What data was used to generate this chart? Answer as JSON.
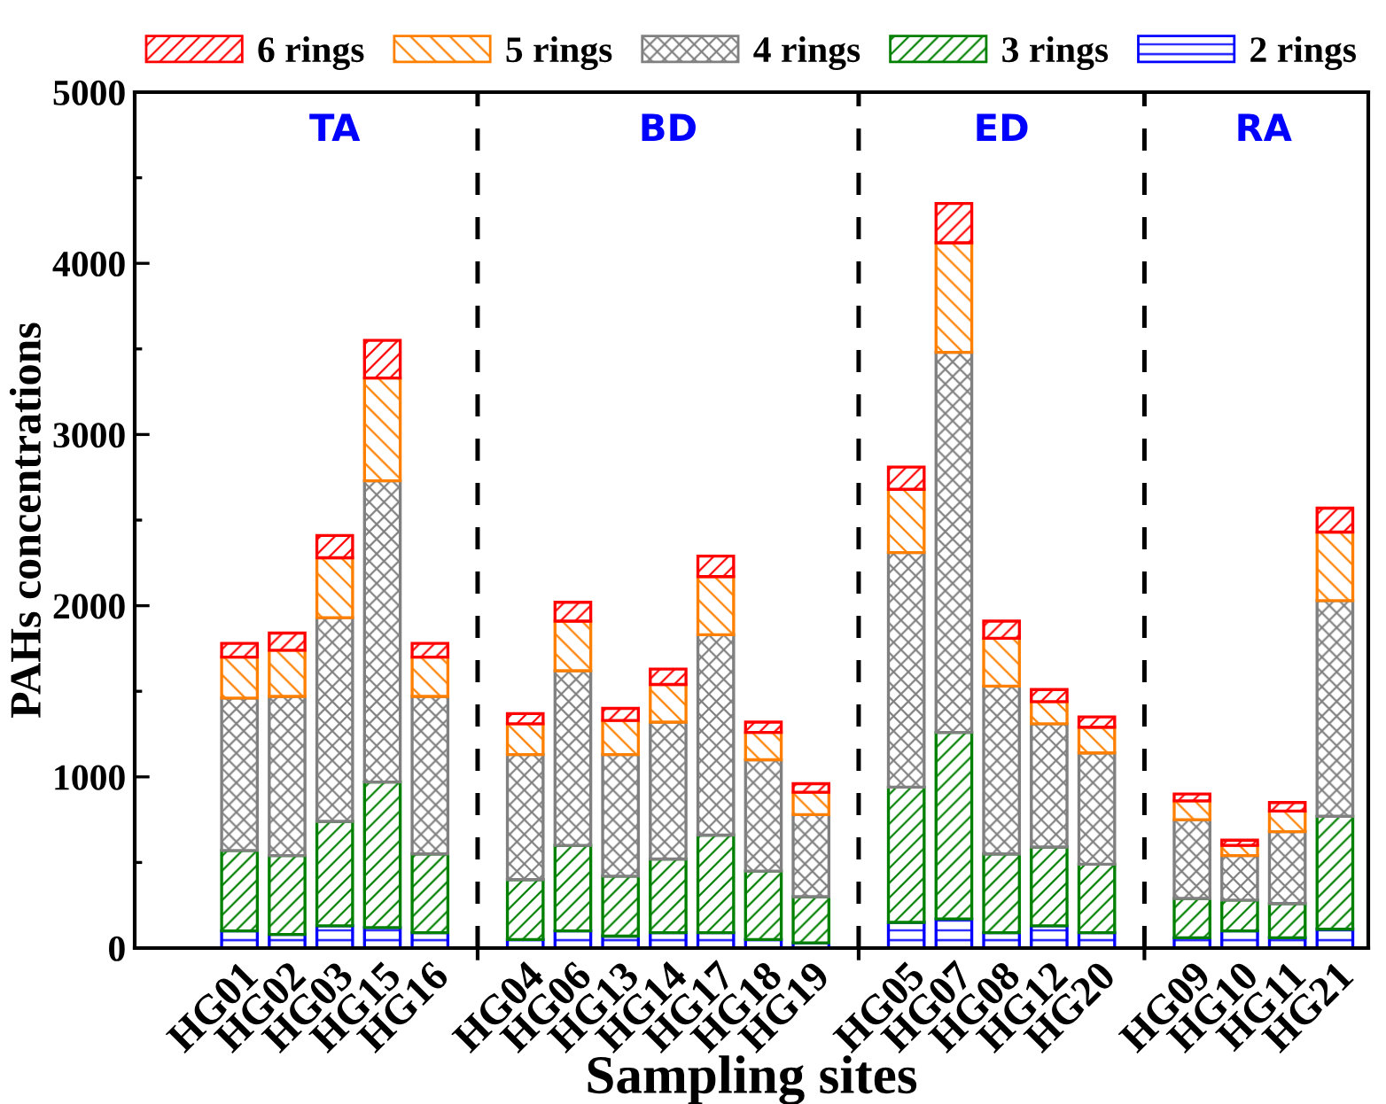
{
  "chart_data": {
    "type": "bar",
    "stacked": true,
    "xlabel": "Sampling sites",
    "ylabel": "PAHs concentrations",
    "categories": [
      "HG01",
      "HG02",
      "HG03",
      "HG15",
      "HG16",
      null,
      "HG04",
      "HG06",
      "HG13",
      "HG14",
      "HG17",
      "HG18",
      "HG19",
      null,
      "HG05",
      "HG07",
      "HG08",
      "HG12",
      "HG20",
      null,
      "HG09",
      "HG10",
      "HG11",
      "HG21"
    ],
    "series": [
      {
        "name": "2 rings",
        "color": "#0000ff",
        "values": [
          100,
          80,
          130,
          120,
          90,
          null,
          50,
          100,
          70,
          90,
          90,
          50,
          30,
          null,
          150,
          170,
          90,
          130,
          90,
          null,
          60,
          100,
          60,
          110
        ]
      },
      {
        "name": "3 rings",
        "color": "#008000",
        "values": [
          470,
          460,
          610,
          850,
          460,
          null,
          350,
          500,
          350,
          430,
          570,
          400,
          270,
          null,
          790,
          1090,
          460,
          460,
          400,
          null,
          230,
          180,
          200,
          660
        ]
      },
      {
        "name": "4 rings",
        "color": "#808080",
        "values": [
          890,
          930,
          1190,
          1760,
          920,
          null,
          730,
          1020,
          710,
          800,
          1170,
          650,
          480,
          null,
          1370,
          2220,
          980,
          720,
          650,
          null,
          460,
          260,
          420,
          1260
        ]
      },
      {
        "name": "5 rings",
        "color": "#ff8000",
        "values": [
          240,
          270,
          350,
          600,
          230,
          null,
          180,
          290,
          200,
          220,
          340,
          160,
          130,
          null,
          370,
          640,
          280,
          130,
          150,
          null,
          110,
          60,
          120,
          400
        ]
      },
      {
        "name": "6 rings",
        "color": "#ff0000",
        "values": [
          80,
          100,
          130,
          220,
          80,
          null,
          60,
          110,
          70,
          90,
          120,
          60,
          50,
          null,
          130,
          230,
          100,
          70,
          60,
          null,
          40,
          30,
          50,
          140
        ]
      }
    ],
    "ylim": [
      0,
      5000
    ],
    "yticks": [
      0,
      1000,
      2000,
      3000,
      4000,
      5000
    ],
    "annotations": [
      "TA",
      "BD",
      "ED",
      "RA"
    ],
    "legend": "top",
    "grid": "x"
  }
}
